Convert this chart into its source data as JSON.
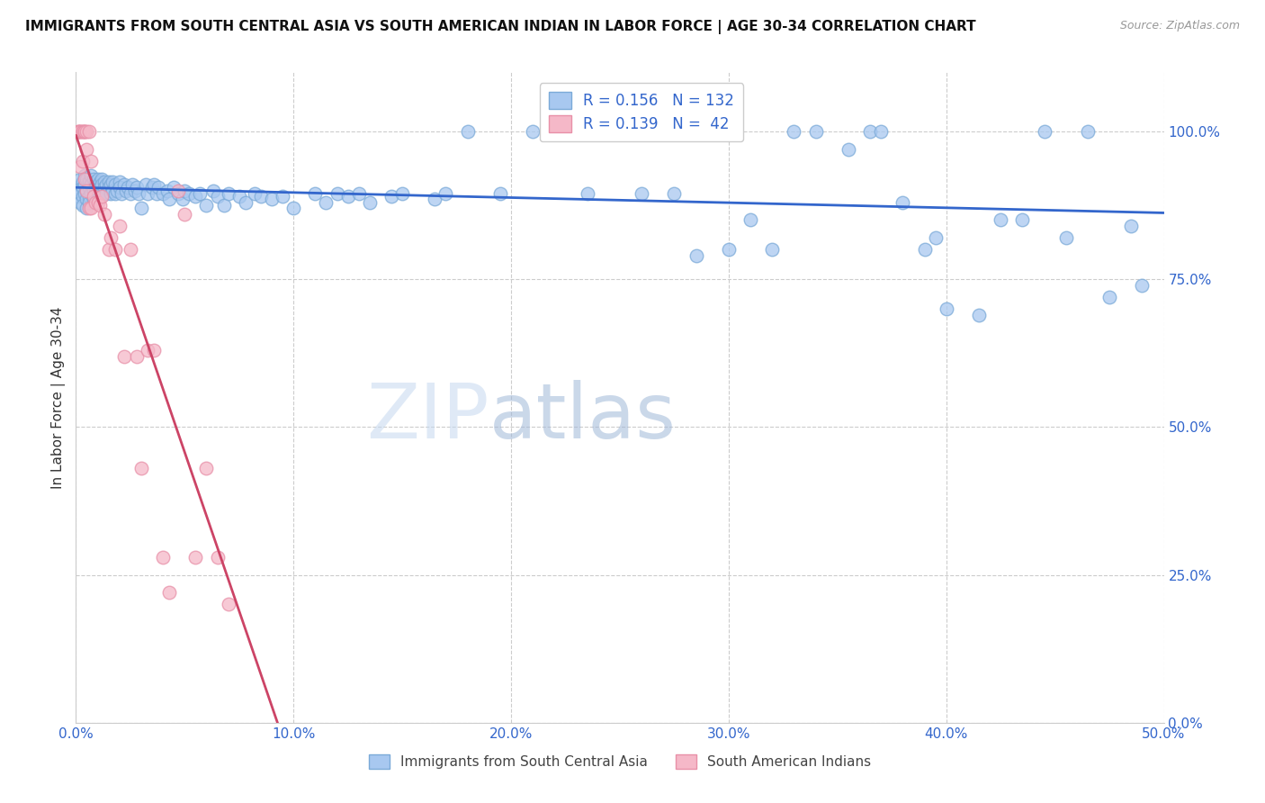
{
  "title": "IMMIGRANTS FROM SOUTH CENTRAL ASIA VS SOUTH AMERICAN INDIAN IN LABOR FORCE | AGE 30-34 CORRELATION CHART",
  "source": "Source: ZipAtlas.com",
  "ylabel": "In Labor Force | Age 30-34",
  "xmin": 0.0,
  "xmax": 0.5,
  "ymin": 0.0,
  "ymax": 1.1,
  "xticks": [
    0.0,
    0.1,
    0.2,
    0.3,
    0.4,
    0.5
  ],
  "xtick_labels": [
    "0.0%",
    "10.0%",
    "20.0%",
    "30.0%",
    "40.0%",
    "50.0%"
  ],
  "yticks": [
    0.0,
    0.25,
    0.5,
    0.75,
    1.0
  ],
  "ytick_labels": [
    "0.0%",
    "25.0%",
    "50.0%",
    "75.0%",
    "100.0%"
  ],
  "legend1_R": "0.156",
  "legend1_N": "132",
  "legend2_R": "0.139",
  "legend2_N": "42",
  "blue_color": "#a8c8f0",
  "blue_edge_color": "#7baad8",
  "pink_color": "#f5b8c8",
  "pink_edge_color": "#e890a8",
  "blue_line_color": "#3366cc",
  "pink_line_color": "#cc4466",
  "axis_color": "#3366cc",
  "legend_R_color": "#222222",
  "watermark_zip_color": "#c5d8f0",
  "watermark_atlas_color": "#a0b8d8",
  "blue_scatter_x": [
    0.001,
    0.001,
    0.002,
    0.002,
    0.002,
    0.003,
    0.003,
    0.003,
    0.003,
    0.004,
    0.004,
    0.004,
    0.005,
    0.005,
    0.005,
    0.005,
    0.006,
    0.006,
    0.006,
    0.006,
    0.007,
    0.007,
    0.007,
    0.008,
    0.008,
    0.008,
    0.009,
    0.009,
    0.009,
    0.01,
    0.01,
    0.01,
    0.01,
    0.011,
    0.011,
    0.012,
    0.012,
    0.012,
    0.013,
    0.013,
    0.014,
    0.014,
    0.015,
    0.015,
    0.016,
    0.016,
    0.017,
    0.017,
    0.018,
    0.018,
    0.019,
    0.02,
    0.02,
    0.021,
    0.022,
    0.023,
    0.024,
    0.025,
    0.026,
    0.027,
    0.028,
    0.029,
    0.03,
    0.032,
    0.033,
    0.035,
    0.036,
    0.037,
    0.038,
    0.04,
    0.042,
    0.043,
    0.045,
    0.047,
    0.049,
    0.05,
    0.052,
    0.055,
    0.057,
    0.06,
    0.063,
    0.065,
    0.068,
    0.07,
    0.075,
    0.078,
    0.082,
    0.085,
    0.09,
    0.095,
    0.1,
    0.11,
    0.115,
    0.12,
    0.125,
    0.13,
    0.135,
    0.145,
    0.15,
    0.165,
    0.17,
    0.18,
    0.195,
    0.21,
    0.22,
    0.235,
    0.245,
    0.255,
    0.26,
    0.275,
    0.285,
    0.3,
    0.31,
    0.32,
    0.33,
    0.34,
    0.355,
    0.365,
    0.37,
    0.38,
    0.39,
    0.395,
    0.4,
    0.415,
    0.425,
    0.435,
    0.445,
    0.455,
    0.465,
    0.475,
    0.485,
    0.49
  ],
  "blue_scatter_y": [
    0.905,
    0.89,
    0.92,
    0.895,
    0.88,
    0.915,
    0.905,
    0.89,
    0.875,
    0.925,
    0.91,
    0.895,
    0.92,
    0.9,
    0.885,
    0.87,
    0.915,
    0.905,
    0.89,
    0.88,
    0.925,
    0.91,
    0.895,
    0.92,
    0.9,
    0.885,
    0.915,
    0.905,
    0.89,
    0.92,
    0.91,
    0.9,
    0.885,
    0.915,
    0.905,
    0.92,
    0.91,
    0.895,
    0.915,
    0.905,
    0.91,
    0.895,
    0.915,
    0.905,
    0.91,
    0.895,
    0.915,
    0.9,
    0.91,
    0.895,
    0.9,
    0.915,
    0.905,
    0.895,
    0.91,
    0.9,
    0.905,
    0.895,
    0.91,
    0.9,
    0.905,
    0.895,
    0.87,
    0.91,
    0.895,
    0.905,
    0.91,
    0.895,
    0.905,
    0.895,
    0.9,
    0.885,
    0.905,
    0.895,
    0.885,
    0.9,
    0.895,
    0.89,
    0.895,
    0.875,
    0.9,
    0.89,
    0.875,
    0.895,
    0.89,
    0.88,
    0.895,
    0.89,
    0.885,
    0.89,
    0.87,
    0.895,
    0.88,
    0.895,
    0.89,
    0.895,
    0.88,
    0.89,
    0.895,
    0.885,
    0.895,
    1.0,
    0.895,
    1.0,
    1.0,
    0.895,
    1.0,
    1.0,
    0.895,
    0.895,
    0.79,
    0.8,
    0.85,
    0.8,
    1.0,
    1.0,
    0.97,
    1.0,
    1.0,
    0.88,
    0.8,
    0.82,
    0.7,
    0.69,
    0.85,
    0.85,
    1.0,
    0.82,
    1.0,
    0.72,
    0.84,
    0.74
  ],
  "pink_scatter_x": [
    0.001,
    0.001,
    0.002,
    0.002,
    0.002,
    0.003,
    0.003,
    0.003,
    0.004,
    0.004,
    0.004,
    0.005,
    0.005,
    0.005,
    0.006,
    0.006,
    0.007,
    0.007,
    0.008,
    0.009,
    0.01,
    0.011,
    0.012,
    0.013,
    0.015,
    0.016,
    0.018,
    0.02,
    0.022,
    0.025,
    0.028,
    0.03,
    0.033,
    0.036,
    0.04,
    0.043,
    0.047,
    0.05,
    0.055,
    0.06,
    0.065,
    0.07
  ],
  "pink_scatter_y": [
    1.0,
    1.0,
    1.0,
    1.0,
    0.94,
    1.0,
    1.0,
    0.95,
    1.0,
    1.0,
    0.92,
    1.0,
    0.97,
    0.9,
    1.0,
    0.87,
    0.95,
    0.87,
    0.89,
    0.88,
    0.88,
    0.875,
    0.89,
    0.86,
    0.8,
    0.82,
    0.8,
    0.84,
    0.62,
    0.8,
    0.62,
    0.43,
    0.63,
    0.63,
    0.28,
    0.22,
    0.9,
    0.86,
    0.28,
    0.43,
    0.28,
    0.2
  ]
}
